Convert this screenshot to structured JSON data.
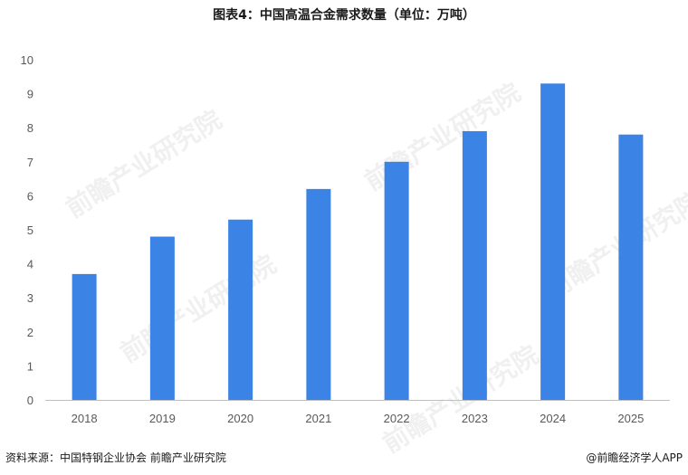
{
  "title": "图表4：中国高温合金需求数量（单位：万吨）",
  "source": "资料来源：中国特钢企业协会 前瞻产业研究院",
  "brand": "@前瞻经济学人APP",
  "watermark_text": "前瞻产业研究院",
  "colors": {
    "bar": "#3B83E4",
    "axis": "#BFBFBF",
    "text": "#595959"
  },
  "chart_data": {
    "type": "bar",
    "title": "图表4：中国高温合金需求数量（单位：万吨）",
    "xlabel": "",
    "ylabel": "",
    "categories": [
      "2018",
      "2019",
      "2020",
      "2021",
      "2022",
      "2023",
      "2024",
      "2025"
    ],
    "series": [
      {
        "values": [
          3.7,
          4.8,
          5.3,
          6.2,
          7.0,
          7.9,
          9.3,
          7.8
        ]
      }
    ],
    "ylim": [
      0,
      10
    ],
    "yticks": [
      "0",
      "1",
      "2",
      "3",
      "4",
      "5",
      "6",
      "7",
      "8",
      "9",
      "10"
    ],
    "grid": false,
    "legend": "none"
  }
}
